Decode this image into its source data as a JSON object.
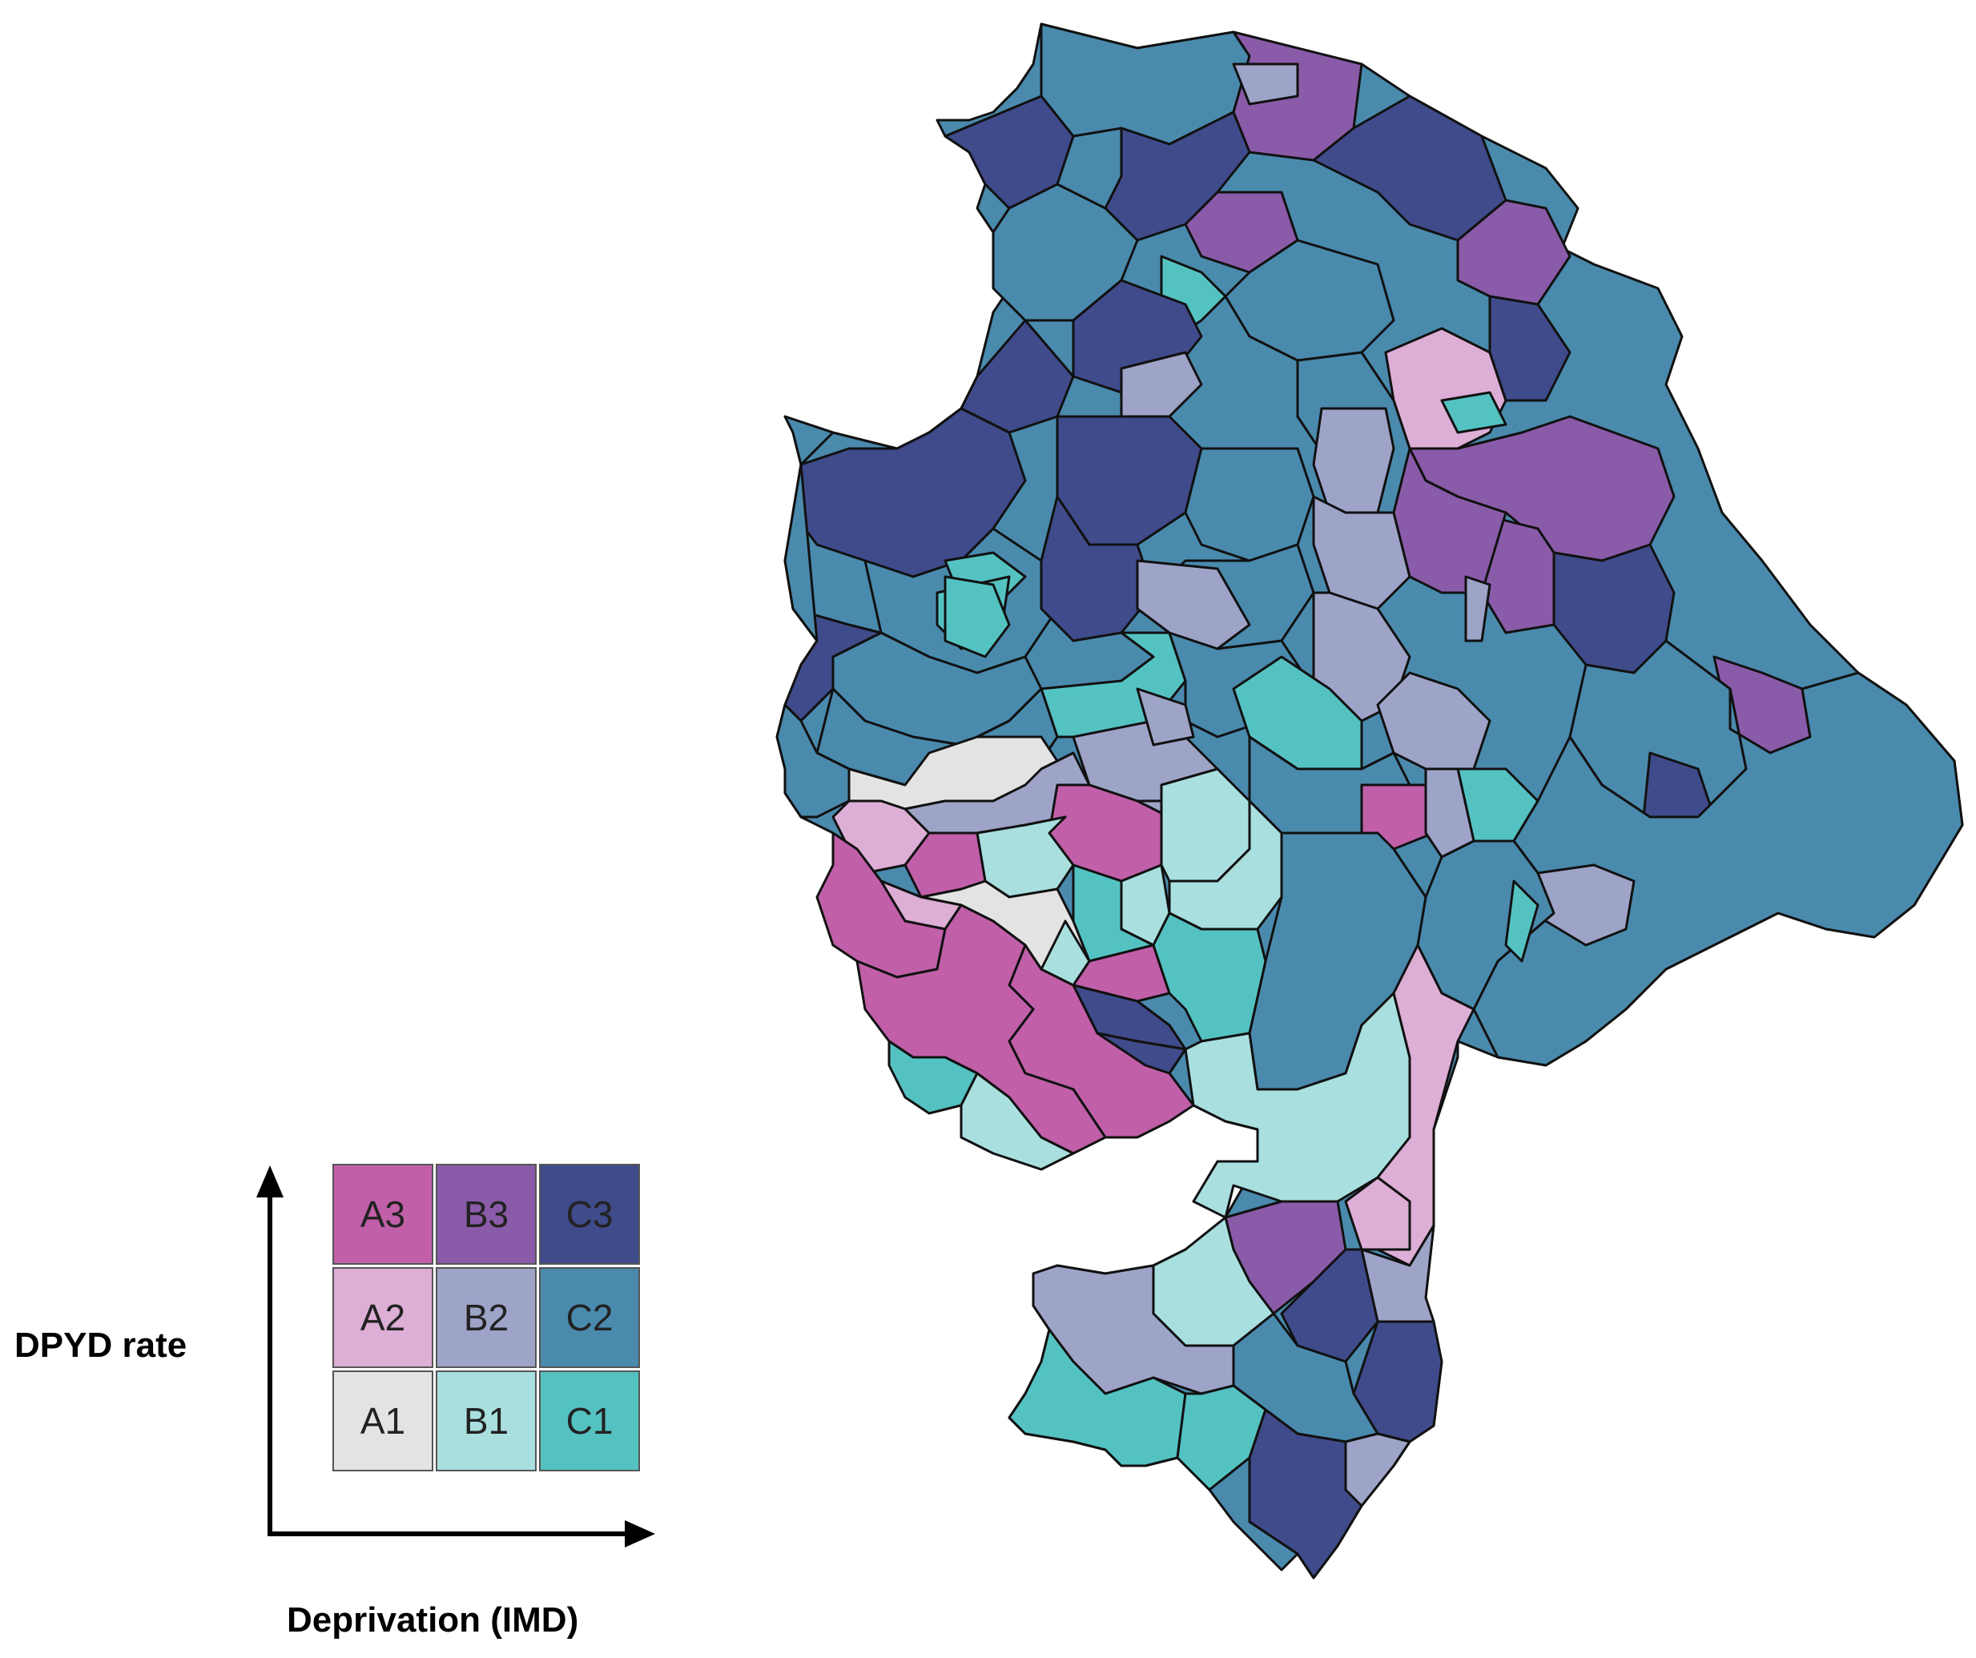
{
  "legend": {
    "y_label": "DPYD rate",
    "x_label": "Deprivation (IMD)",
    "cells": [
      {
        "label": "A3",
        "color": "#c15fa9"
      },
      {
        "label": "B3",
        "color": "#8a5ba8"
      },
      {
        "label": "C3",
        "color": "#3f4b8a"
      },
      {
        "label": "A2",
        "color": "#ddaed6"
      },
      {
        "label": "B2",
        "color": "#9ea3c8"
      },
      {
        "label": "C2",
        "color": "#4a8aad"
      },
      {
        "label": "A1",
        "color": "#e3e3e3"
      },
      {
        "label": "B1",
        "color": "#a9dfdf"
      },
      {
        "label": "C1",
        "color": "#55c2c2"
      }
    ]
  },
  "map": {
    "colors": {
      "A3": "#c15fa9",
      "B3": "#8a5ba8",
      "C3": "#3f4b8a",
      "A2": "#ddaed6",
      "B2": "#9ea3c8",
      "C2": "#4a8aad",
      "A1": "#e3e3e3",
      "B1": "#a9dfdf",
      "C1": "#55c2c2"
    },
    "outline_color": "#111111"
  }
}
